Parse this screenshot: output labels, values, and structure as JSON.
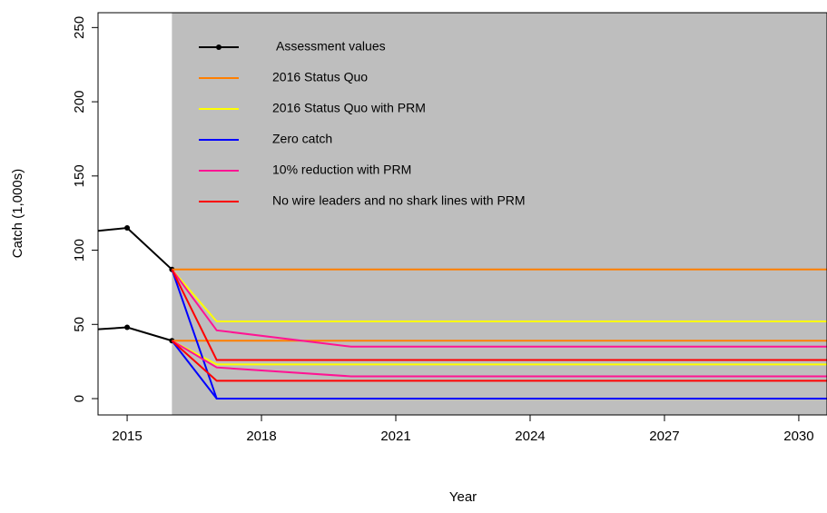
{
  "chart_data": {
    "type": "line",
    "x_label": "Year",
    "y_label": "Catch (1,000s)",
    "xlim": [
      2014.35,
      2030.63
    ],
    "ylim": [
      -11,
      260
    ],
    "xticks": [
      2015,
      2018,
      2021,
      2024,
      2027,
      2030
    ],
    "yticks": [
      0,
      50,
      100,
      150,
      200,
      250
    ],
    "shade_from": 2016,
    "shade_color": "#bebebe",
    "series": [
      {
        "name": "Assessment values",
        "color": "#000000",
        "markers": true,
        "x": [
          2014,
          2015,
          2016
        ],
        "upper": [
          112,
          115,
          87
        ],
        "lower": [
          46,
          48,
          39
        ]
      },
      {
        "name": "2016 Status Quo",
        "color": "#ff7f00",
        "markers": false,
        "x": [
          2016,
          2031
        ],
        "upper": [
          87,
          87
        ],
        "lower": [
          39,
          39
        ]
      },
      {
        "name": "2016 Status Quo with PRM",
        "color": "#ffff00",
        "markers": false,
        "x": [
          2016,
          2017,
          2031
        ],
        "upper": [
          87,
          52,
          52
        ],
        "lower": [
          39,
          23,
          23
        ]
      },
      {
        "name": "Zero catch",
        "color": "#0000ff",
        "markers": false,
        "x": [
          2016,
          2017,
          2031
        ],
        "upper": [
          87,
          0,
          0
        ],
        "lower": [
          39,
          0,
          0
        ]
      },
      {
        "name": "10% reduction with PRM",
        "color": "#ff1493",
        "markers": false,
        "x": [
          2016,
          2017,
          2020,
          2031
        ],
        "upper": [
          87,
          46,
          35,
          35
        ],
        "lower": [
          39,
          21,
          15,
          15
        ]
      },
      {
        "name": "No wire leaders and no shark lines with PRM",
        "color": "#ff0000",
        "markers": false,
        "x": [
          2016,
          2017,
          2031
        ],
        "upper": [
          87,
          26,
          26
        ],
        "lower": [
          39,
          12,
          12
        ]
      }
    ]
  }
}
